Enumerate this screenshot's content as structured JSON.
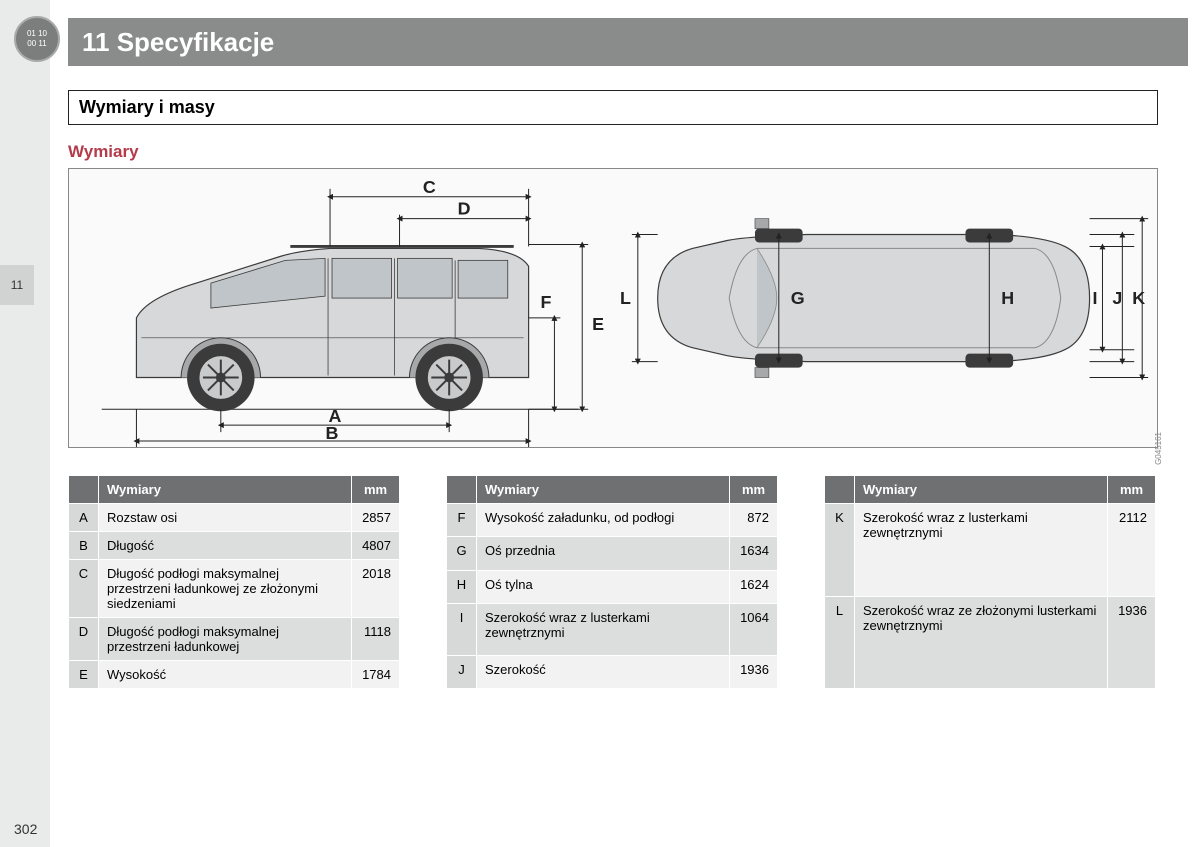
{
  "chapter": {
    "badge_top": "01 10",
    "badge_bottom": "00 11",
    "title": "11 Specyfikacje"
  },
  "section": {
    "heading": "Wymiary i masy",
    "subheading": "Wymiary"
  },
  "tab": "11",
  "page_number": "302",
  "diagram": {
    "image_ref": "G045161",
    "side": {
      "labels": [
        "A",
        "B",
        "C",
        "D",
        "E",
        "F",
        "L"
      ],
      "label_fontsize": 18
    },
    "top": {
      "labels": [
        "G",
        "H",
        "I",
        "J",
        "K"
      ],
      "label_fontsize": 18
    },
    "colors": {
      "body": "#d7d8d9",
      "body_dark": "#a7a8a9",
      "glass": "#bfc5c9",
      "outline": "#3b3b3b",
      "dim_line": "#222222",
      "background": "#fafafa"
    }
  },
  "tables": {
    "header_labels": {
      "letter": "",
      "desc": "Wymiary",
      "mm": "mm"
    },
    "columns": [
      [
        {
          "letter": "A",
          "desc": "Rozstaw osi",
          "mm": "2857"
        },
        {
          "letter": "B",
          "desc": "Długość",
          "mm": "4807"
        },
        {
          "letter": "C",
          "desc": "Długość podłogi maksymalnej przestrzeni ładunkowej ze zło­żonymi siedzeniami",
          "mm": "2018"
        },
        {
          "letter": "D",
          "desc": "Długość podłogi maksymalnej przestrzeni ładunkowej",
          "mm": "1118"
        },
        {
          "letter": "E",
          "desc": "Wysokość",
          "mm": "1784"
        }
      ],
      [
        {
          "letter": "F",
          "desc": "Wysokość załadunku, od pod­łogi",
          "mm": "872"
        },
        {
          "letter": "G",
          "desc": "Oś przednia",
          "mm": "1634"
        },
        {
          "letter": "H",
          "desc": "Oś tylna",
          "mm": "1624"
        },
        {
          "letter": "I",
          "desc": "Szerokość wraz z lusterkami zewnętrznymi",
          "mm": "1064"
        },
        {
          "letter": "J",
          "desc": "Szerokość",
          "mm": "1936"
        }
      ],
      [
        {
          "letter": "K",
          "desc": "Szerokość wraz z lusterkami zewnętrznymi",
          "mm": "2112"
        },
        {
          "letter": "L",
          "desc": "Szerokość wraz ze złożonymi lusterkami zewnętrznymi",
          "mm": "1936"
        }
      ]
    ],
    "styles": {
      "header_bg": "#6f7071",
      "header_fg": "#ffffff",
      "letter_bg": "#d7d8d8",
      "row_odd_bg": "#f2f2f2",
      "row_even_bg": "#dcdddd",
      "font_size": 13
    }
  },
  "colors": {
    "left_margin": "#e9eaea",
    "tab_bg": "#d1d2d2",
    "title_bar": "#8a8b8b",
    "subheading": "#b33b4a"
  }
}
